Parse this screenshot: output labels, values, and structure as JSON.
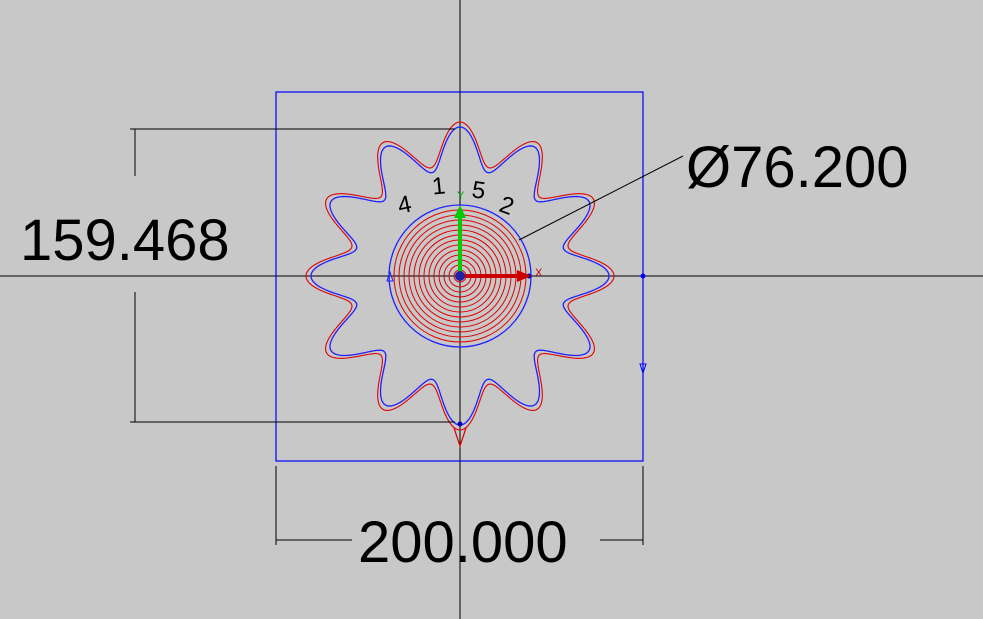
{
  "drawing": {
    "dimensions": {
      "height_label": "159.468",
      "width_label": "200.000",
      "diameter_label": "Ø76.200"
    },
    "sequence_labels": [
      "4",
      "1",
      "5",
      "2"
    ],
    "axis_labels": {
      "x": "X",
      "y": "Y"
    },
    "colors": {
      "background": "#c8c8c8",
      "stock_outline": "#0000ff",
      "part_profile": "#2020ff",
      "toolpath": "#e00000",
      "dimension": "#000000",
      "axis_x": "#cc0000",
      "axis_y": "#00cc00"
    },
    "gear": {
      "teeth": 12
    }
  }
}
